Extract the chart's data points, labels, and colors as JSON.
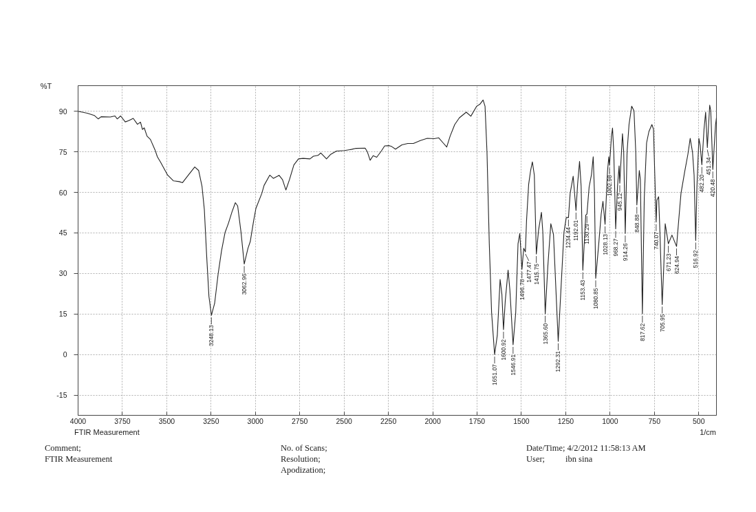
{
  "chart_data": {
    "type": "line",
    "color": "#222222",
    "x": [
      4000,
      3948,
      3909,
      3886,
      3870,
      3818,
      3792,
      3779,
      3760,
      3734,
      3714,
      3689,
      3665,
      3648,
      3637,
      3627,
      3611,
      3592,
      3566,
      3553,
      3534,
      3495,
      3463,
      3430,
      3411,
      3378,
      3342,
      3320,
      3301,
      3288,
      3275,
      3262,
      3248.13,
      3230,
      3210,
      3191,
      3171,
      3152,
      3132,
      3113,
      3100,
      3081,
      3062.96,
      3042,
      3029,
      3010,
      2997,
      2964,
      2951,
      2919,
      2899,
      2866,
      2847,
      2828,
      2808,
      2783,
      2757,
      2731,
      2692,
      2673,
      2647,
      2631,
      2599,
      2575,
      2543,
      2497,
      2459,
      2433,
      2381,
      2368,
      2353,
      2336,
      2316,
      2290,
      2271,
      2245,
      2232,
      2210,
      2174,
      2141,
      2109,
      2070,
      2031,
      1992,
      1966,
      1941,
      1921,
      1902,
      1876,
      1850,
      1811,
      1785,
      1752,
      1733,
      1716,
      1705,
      1694,
      1681,
      1668,
      1651.07,
      1636,
      1620,
      1610,
      1600.92,
      1591,
      1575,
      1565,
      1546.91,
      1532,
      1519,
      1509,
      1496.78,
      1487,
      1477.47,
      1471,
      1459,
      1448,
      1438,
      1427,
      1415.75,
      1403,
      1387,
      1379,
      1365.6,
      1351,
      1334,
      1319,
      1292.31,
      1277,
      1260,
      1247,
      1234.44,
      1225,
      1208,
      1192.01,
      1183,
      1172,
      1163,
      1153.43,
      1137,
      1130.29,
      1118,
      1105,
      1095,
      1088,
      1080.85,
      1065,
      1050,
      1040,
      1028.13,
      1014,
      1007,
      1002.98,
      992,
      986,
      979,
      968.27,
      958,
      949,
      945.12,
      930,
      923,
      914.26,
      904,
      893,
      878,
      865,
      855,
      848.88,
      835,
      829,
      817.62,
      807,
      794,
      781,
      764,
      755,
      740.07,
      736,
      726,
      720,
      705.95,
      697,
      689,
      671.23,
      651,
      624.94,
      613,
      600,
      580,
      561,
      548,
      535,
      526,
      516.92,
      510,
      499,
      492,
      482.2,
      470,
      461,
      451.34,
      438,
      432,
      420.48,
      405,
      400
    ],
    "values": [
      90,
      89.3,
      88.5,
      87.2,
      88,
      87.9,
      88.3,
      87.2,
      88.3,
      86.1,
      86.6,
      87.4,
      85.2,
      86.0,
      83.3,
      83.9,
      80.8,
      79.6,
      75.7,
      73.2,
      71.1,
      66.4,
      64.3,
      64.0,
      63.6,
      66.4,
      69.4,
      68.1,
      62.2,
      53.7,
      36.7,
      21.5,
      14.5,
      18.9,
      29.9,
      38.4,
      45.2,
      48.6,
      52.8,
      56.2,
      55.0,
      45.2,
      33.5,
      39.3,
      41.8,
      49.5,
      54.1,
      59.6,
      62.6,
      66.4,
      65.2,
      66.3,
      64.7,
      60.9,
      64.7,
      70.2,
      72.4,
      72.6,
      72.4,
      73.4,
      73.7,
      74.6,
      72.4,
      74.1,
      75.3,
      75.5,
      75.9,
      76.3,
      76.4,
      74.9,
      71.9,
      73.6,
      73.0,
      75.3,
      77.2,
      77.3,
      77.0,
      76.0,
      77.6,
      78.1,
      78.1,
      79.2,
      80.0,
      79.9,
      80.2,
      78.3,
      76.8,
      80.8,
      85.1,
      87.6,
      89.7,
      88.2,
      91.9,
      92.7,
      94.2,
      91.9,
      74.9,
      41.0,
      15.5,
      0.0,
      7.0,
      27.8,
      22.3,
      9.2,
      19.8,
      31.2,
      24.0,
      3.6,
      15.5,
      41.0,
      44.8,
      31.5,
      39.3,
      38.0,
      49.5,
      63.0,
      68.1,
      71.3,
      66.4,
      37.2,
      46.1,
      52.6,
      45.2,
      15.1,
      32.5,
      48.4,
      44.4,
      4.9,
      24.0,
      45.2,
      50.7,
      50.7,
      59.6,
      66.0,
      53.3,
      63.0,
      71.5,
      62.2,
      31.2,
      51.6,
      52.0,
      62.0,
      66.5,
      73.2,
      60.0,
      28.2,
      40.0,
      52.0,
      56.7,
      48.2,
      68.1,
      73.2,
      70.0,
      80.8,
      83.8,
      74.9,
      46.5,
      62.2,
      69.8,
      63.4,
      81.7,
      74.9,
      44.8,
      74.9,
      85.1,
      91.9,
      90.2,
      74.9,
      55.4,
      68.1,
      64.7,
      15.1,
      57.9,
      78.3,
      82.5,
      85.1,
      83.4,
      49.0,
      57.1,
      58.4,
      47.7,
      18.5,
      32.5,
      48.4,
      41.0,
      44.2,
      40.0,
      49.5,
      59.6,
      67.3,
      74.1,
      80.0,
      74.9,
      66.4,
      42.2,
      62.2,
      80.0,
      77.5,
      70.2,
      83.4,
      89.7,
      76.6,
      92.3,
      90.2,
      68.5,
      85.1,
      87.6
    ],
    "xlim": [
      4000,
      400
    ],
    "ylim": [
      -22.5,
      99.5
    ],
    "xticks": [
      4000,
      3750,
      3500,
      3250,
      3000,
      2750,
      2500,
      2250,
      2000,
      1750,
      1500,
      1250,
      1000,
      750,
      500
    ],
    "yticks": [
      -15,
      0,
      15,
      30,
      45,
      60,
      75,
      90
    ],
    "xlabel": "1/cm",
    "ylabel": "%T",
    "grid": true,
    "annotations": [
      "FTIR Measurement",
      "Comment;",
      "FTIR Measurement",
      "No. of Scans;",
      "Resolution;",
      "Apodization;",
      "Date/Time; 4/2/2012 11:58:13 AM",
      "User;",
      "ibn sina",
      {
        "text": "3248.13",
        "x": 3248.13,
        "y": 14.5
      },
      {
        "text": "3062.96",
        "x": 3062.96,
        "y": 33.5
      },
      {
        "text": "1651.07",
        "x": 1651.07,
        "y": 0.0
      },
      {
        "text": "1600.92",
        "x": 1600.92,
        "y": 9.2
      },
      {
        "text": "1546.91",
        "x": 1546.91,
        "y": 3.6
      },
      {
        "text": "1496.78",
        "x": 1496.78,
        "y": 31.5
      },
      {
        "text": "1477.47",
        "x": 1477.47,
        "y": 38.0
      },
      {
        "text": "1415.75",
        "x": 1415.75,
        "y": 37.2
      },
      {
        "text": "1365.60",
        "x": 1365.6,
        "y": 15.1
      },
      {
        "text": "1292.31",
        "x": 1292.31,
        "y": 4.9
      },
      {
        "text": "1234.44",
        "x": 1234.44,
        "y": 50.7
      },
      {
        "text": "1192.01",
        "x": 1192.01,
        "y": 53.3
      },
      {
        "text": "1153.43",
        "x": 1153.43,
        "y": 31.2
      },
      {
        "text": "1130.29",
        "x": 1130.29,
        "y": 52.0
      },
      {
        "text": "1080.85",
        "x": 1080.85,
        "y": 28.2
      },
      {
        "text": "1028.13",
        "x": 1028.13,
        "y": 48.2
      },
      {
        "text": "1002.98",
        "x": 1002.98,
        "y": 70.0
      },
      {
        "text": "968.27",
        "x": 968.27,
        "y": 46.5
      },
      {
        "text": "945.12",
        "x": 945.12,
        "y": 63.4
      },
      {
        "text": "914.26",
        "x": 914.26,
        "y": 44.8
      },
      {
        "text": "848.88",
        "x": 848.88,
        "y": 55.4
      },
      {
        "text": "817.62",
        "x": 817.62,
        "y": 15.1
      },
      {
        "text": "740.07",
        "x": 740.07,
        "y": 49.0
      },
      {
        "text": "705.95",
        "x": 705.95,
        "y": 18.5
      },
      {
        "text": "671.23",
        "x": 671.23,
        "y": 41.0
      },
      {
        "text": "624.94",
        "x": 624.94,
        "y": 40.0
      },
      {
        "text": "516.92",
        "x": 516.92,
        "y": 42.2
      },
      {
        "text": "482.20",
        "x": 482.2,
        "y": 70.2
      },
      {
        "text": "451.34",
        "x": 451.34,
        "y": 76.6
      },
      {
        "text": "420.48",
        "x": 420.48,
        "y": 68.5
      }
    ]
  }
}
